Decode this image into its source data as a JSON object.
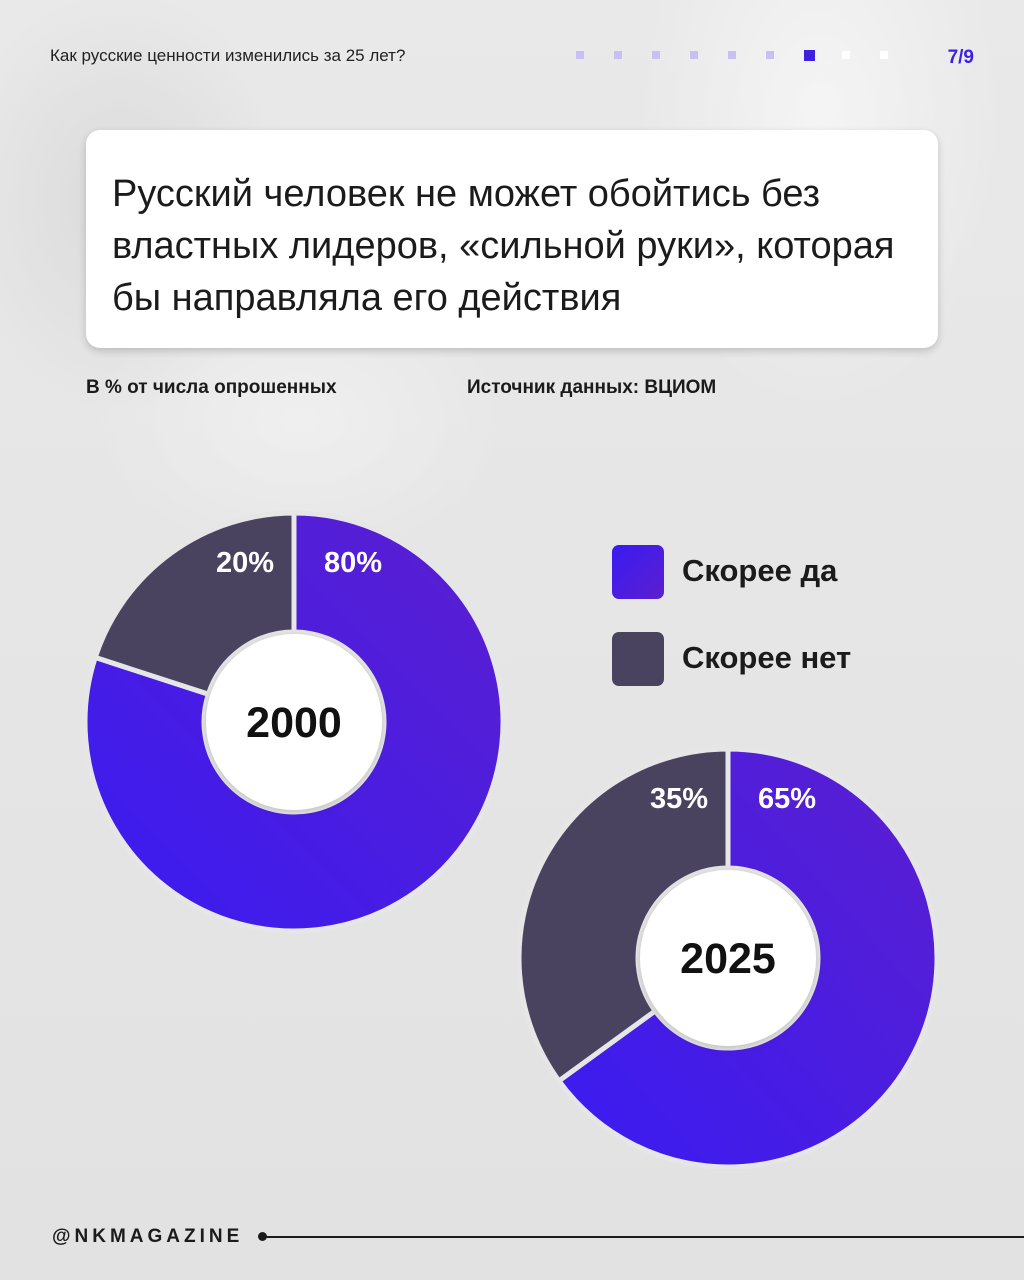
{
  "header": {
    "topic": "Как русские ценности изменились за 25 лет?",
    "page_indicator": "7/9",
    "page_current": 7,
    "page_total": 9,
    "dots": [
      {
        "state": "visited"
      },
      {
        "state": "visited"
      },
      {
        "state": "visited"
      },
      {
        "state": "visited"
      },
      {
        "state": "visited"
      },
      {
        "state": "visited"
      },
      {
        "state": "current"
      },
      {
        "state": "upcoming"
      },
      {
        "state": "upcoming"
      }
    ]
  },
  "headline": "Русский человек не может обойтись без властных лидеров, «сильной руки», которая бы направляла его действия",
  "notes": {
    "unit": "В % от числа опрошенных",
    "source": "Источник данных: ВЦИОМ"
  },
  "legend": [
    {
      "label": "Скорее да",
      "color": "#3d1ff0"
    },
    {
      "label": "Скорее нет",
      "color": "#4a4360"
    }
  ],
  "colors": {
    "yes_start": "#3a1bf2",
    "yes_end": "#5b1fcf",
    "no": "#4a4360",
    "accent": "#3f1fe0",
    "dot_visited": "#c9bff2",
    "dot_current": "#3f1fe0",
    "dot_upcoming": "#ffffff"
  },
  "chart_data": [
    {
      "type": "pie",
      "variant": "donut",
      "center_label": "2000",
      "slices": [
        {
          "name": "Скорее да",
          "value": 80,
          "label": "80%"
        },
        {
          "name": "Скорее нет",
          "value": 20,
          "label": "20%"
        }
      ]
    },
    {
      "type": "pie",
      "variant": "donut",
      "center_label": "2025",
      "slices": [
        {
          "name": "Скорее да",
          "value": 65,
          "label": "65%"
        },
        {
          "name": "Скорее нет",
          "value": 35,
          "label": "35%"
        }
      ]
    }
  ],
  "footer": {
    "handle": "@NKMAGAZINE"
  }
}
